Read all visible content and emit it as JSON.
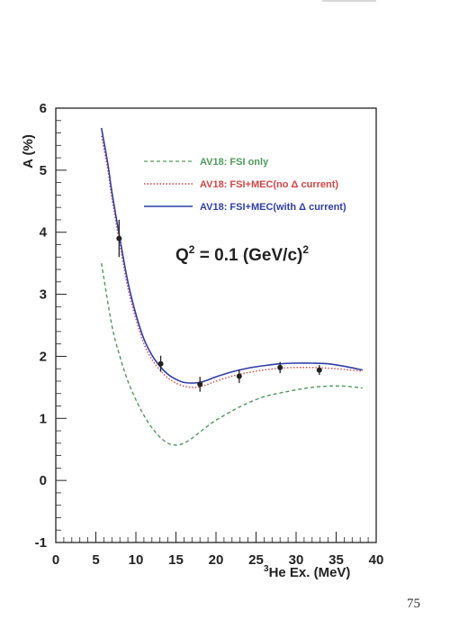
{
  "page": {
    "page_number": "75"
  },
  "chart_data": {
    "type": "line",
    "title": "",
    "xlabel_sup": "3",
    "xlabel_main": "He Ex. (MeV)",
    "ylabel": "A (%)",
    "xlim": [
      0,
      40
    ],
    "ylim": [
      -1,
      6
    ],
    "x_ticks": [
      0,
      5,
      10,
      15,
      20,
      25,
      30,
      35,
      40
    ],
    "y_ticks": [
      -1,
      0,
      1,
      2,
      3,
      4,
      5,
      6
    ],
    "grid": false,
    "legend_placement": "top-right",
    "annotation": {
      "q_prefix": "Q",
      "q_sup": "2",
      "q_mid": " = 0.1 (GeV/c)",
      "q_sup2": "2"
    },
    "series": [
      {
        "name": "AV18:  FSI only",
        "style": "dashed",
        "color": "#4e9a5a",
        "x": [
          5.7,
          7,
          8,
          9,
          10,
          11,
          12,
          13,
          14,
          15,
          16,
          17,
          18,
          19,
          20,
          22,
          24,
          26,
          28,
          30,
          32,
          34,
          36,
          38.3
        ],
        "y": [
          3.5,
          2.5,
          2.0,
          1.6,
          1.3,
          1.05,
          0.85,
          0.7,
          0.6,
          0.57,
          0.6,
          0.68,
          0.78,
          0.88,
          0.97,
          1.12,
          1.25,
          1.35,
          1.41,
          1.46,
          1.5,
          1.52,
          1.52,
          1.49
        ]
      },
      {
        "name": "AV18:  FSI+MEC(no  Δ  current)",
        "style": "dotted",
        "color": "#d64545",
        "x": [
          5.7,
          6.5,
          7,
          8,
          9,
          10,
          11,
          12,
          13,
          14,
          15,
          16,
          17,
          18,
          19,
          20,
          22,
          24,
          26,
          28,
          30,
          32,
          34,
          36,
          38.3
        ],
        "y": [
          5.55,
          5.0,
          4.55,
          3.8,
          3.1,
          2.6,
          2.2,
          1.95,
          1.78,
          1.65,
          1.57,
          1.52,
          1.5,
          1.51,
          1.55,
          1.6,
          1.68,
          1.74,
          1.78,
          1.81,
          1.82,
          1.82,
          1.81,
          1.79,
          1.76
        ]
      },
      {
        "name": "AV18:  FSI+MEC(with  Δ  current)",
        "style": "solid",
        "color": "#2f3ea8",
        "x": [
          5.7,
          6.5,
          7,
          8,
          9,
          10,
          11,
          12,
          13,
          14,
          15,
          16,
          17,
          18,
          19,
          20,
          22,
          24,
          26,
          28,
          30,
          32,
          34,
          36,
          38.3
        ],
        "y": [
          5.68,
          5.1,
          4.65,
          3.9,
          3.2,
          2.68,
          2.28,
          2.02,
          1.84,
          1.71,
          1.63,
          1.58,
          1.57,
          1.58,
          1.62,
          1.67,
          1.75,
          1.81,
          1.85,
          1.88,
          1.89,
          1.89,
          1.88,
          1.84,
          1.78
        ]
      }
    ],
    "data_points": {
      "x": [
        7.9,
        13.1,
        18.0,
        22.9,
        28.0,
        32.9
      ],
      "y": [
        3.9,
        1.88,
        1.55,
        1.68,
        1.82,
        1.78
      ],
      "err": [
        0.3,
        0.13,
        0.12,
        0.11,
        0.09,
        0.08
      ]
    }
  }
}
